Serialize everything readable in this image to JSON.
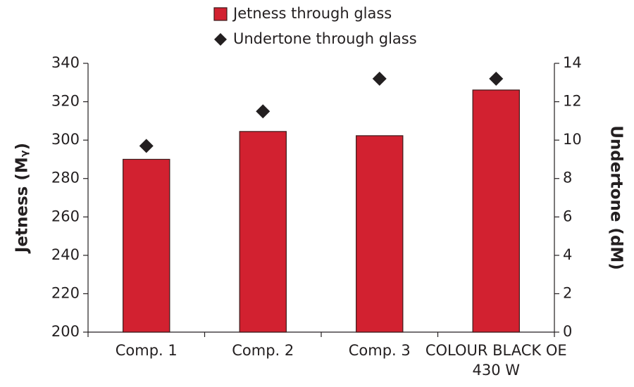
{
  "chart_data": {
    "type": "bar",
    "categories": [
      "Comp. 1",
      "Comp. 2",
      "Comp. 3",
      "COLOUR BLACK OE 430 W"
    ],
    "series": [
      {
        "name": "Jetness through glass",
        "type": "bar",
        "color": "#d22130",
        "values": [
          290,
          304.5,
          302.3,
          326.1
        ]
      },
      {
        "name": "Undertone through glass",
        "type": "scatter",
        "marker": "diamond",
        "color": "#231f20",
        "axis": "y2",
        "values": [
          9.7,
          11.5,
          13.2,
          13.2
        ]
      }
    ],
    "ylabel": "Jetness (Mᵧ)",
    "y2label": "Undertone (dM)",
    "ylim": [
      200,
      340
    ],
    "yticks": [
      200,
      220,
      240,
      260,
      280,
      300,
      320,
      340
    ],
    "y2lim": [
      0,
      14
    ],
    "y2ticks": [
      0,
      2,
      4,
      6,
      8,
      10,
      12,
      14
    ],
    "grid": false,
    "legend": "top"
  }
}
